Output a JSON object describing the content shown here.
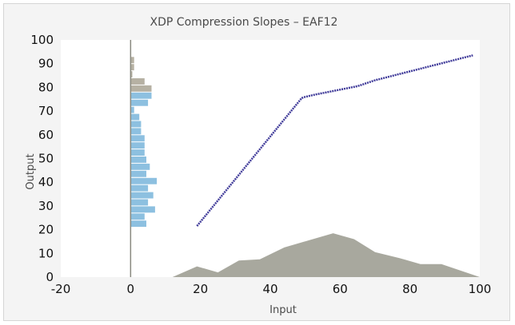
{
  "chart_data": {
    "type": "line",
    "title": "XDP Compression Slopes – EAF12",
    "xlabel": "Input",
    "ylabel": "Output",
    "xlim": [
      -20,
      100
    ],
    "ylim": [
      0,
      100
    ],
    "x_ticks": [
      "-20",
      "0",
      "20",
      "40",
      "60",
      "80",
      "100"
    ],
    "y_ticks": [
      "0",
      "10",
      "20",
      "30",
      "40",
      "50",
      "60",
      "70",
      "80",
      "90",
      "100"
    ],
    "grid": false,
    "compression_curve": {
      "color": "#3f3a99",
      "x": [
        19,
        49,
        50,
        53,
        65,
        70,
        98
      ],
      "y": [
        21.5,
        75.5,
        76,
        77,
        80.5,
        83,
        93.5
      ]
    },
    "input_distribution": {
      "color": "#a8a89e",
      "x": [
        12,
        19,
        25,
        31,
        37,
        44,
        51,
        58,
        64,
        70,
        77,
        83,
        89,
        100
      ],
      "y": [
        0,
        4.5,
        2,
        7,
        7.5,
        12.5,
        15.5,
        18.5,
        16,
        10.5,
        8,
        5.5,
        5.5,
        0
      ]
    },
    "output_distribution_bars": {
      "color_output_range": "#8dc0e0",
      "color_above": "#b6b1a3",
      "bin_centers": [
        22.5,
        25.5,
        28.5,
        31.5,
        34.5,
        37.5,
        40.5,
        43.5,
        46.5,
        49.5,
        52.5,
        55.5,
        58.5,
        61.5,
        64.5,
        67.5,
        70.5,
        73.5,
        76.5,
        79.5,
        82.5,
        85.5,
        88.5,
        91.5
      ],
      "lengths": [
        4.5,
        4,
        7,
        5,
        6.5,
        5,
        7.5,
        4.5,
        5.5,
        4.5,
        4,
        4,
        4,
        3,
        3,
        2.5,
        1,
        5,
        6,
        6,
        4,
        0.5,
        1,
        1
      ],
      "above_from_bin": 19
    },
    "vertical_axis_line_at_x": 0
  }
}
